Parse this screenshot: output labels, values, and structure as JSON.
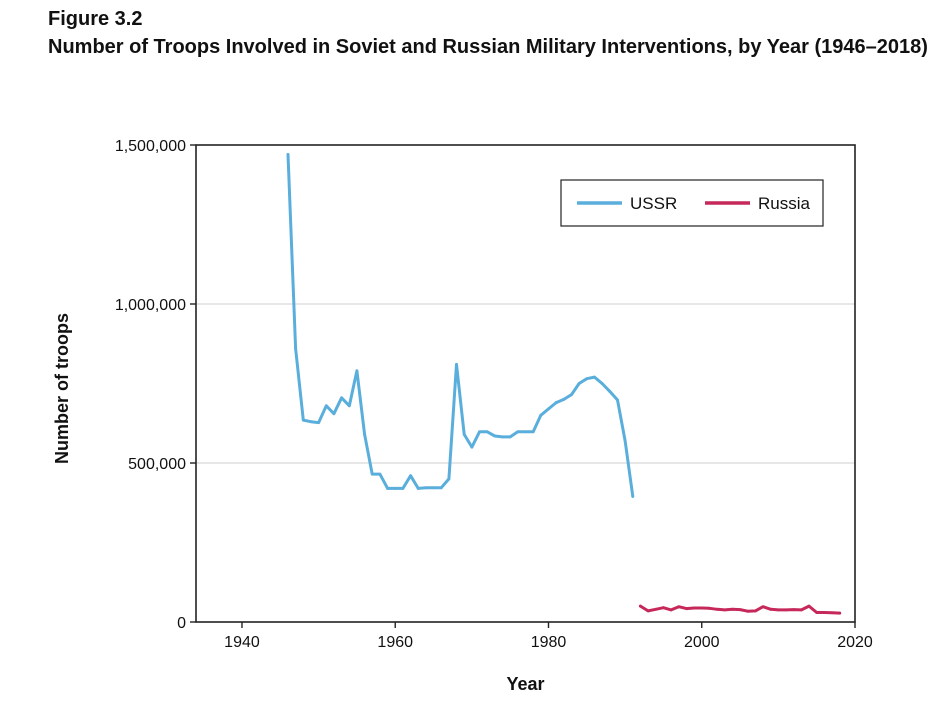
{
  "figure": {
    "label": "Figure 3.2",
    "title": "Number of Troops Involved in Soviet and Russian Military Interventions, by Year (1946–2018)"
  },
  "chart_data": {
    "type": "line",
    "title": "Number of Troops Involved in Soviet and Russian Military Interventions, by Year (1946–2018)",
    "xlabel": "Year",
    "ylabel": "Number of troops",
    "xlim": [
      1934,
      2020
    ],
    "ylim": [
      0,
      1500000
    ],
    "xticks": [
      1940,
      1960,
      1980,
      2000,
      2020
    ],
    "xtick_labels": [
      "1940",
      "1960",
      "1980",
      "2000",
      "2020"
    ],
    "yticks": [
      0,
      500000,
      1000000,
      1500000
    ],
    "ytick_labels": [
      "0",
      "500,000",
      "1,000,000",
      "1,500,000"
    ],
    "grid": "horizontal",
    "legend_position": "top-right",
    "series": [
      {
        "name": "USSR",
        "color": "#5aaedc",
        "x": [
          1946,
          1947,
          1948,
          1949,
          1950,
          1951,
          1952,
          1953,
          1954,
          1955,
          1956,
          1957,
          1958,
          1959,
          1960,
          1961,
          1962,
          1963,
          1964,
          1965,
          1966,
          1967,
          1968,
          1969,
          1970,
          1971,
          1972,
          1973,
          1974,
          1975,
          1976,
          1977,
          1978,
          1979,
          1980,
          1981,
          1982,
          1983,
          1984,
          1985,
          1986,
          1987,
          1988,
          1989,
          1990,
          1991
        ],
        "values": [
          1470000,
          860000,
          635000,
          630000,
          627000,
          680000,
          655000,
          705000,
          680000,
          790000,
          590000,
          465000,
          465000,
          420000,
          420000,
          420000,
          460000,
          420000,
          422000,
          422000,
          422000,
          450000,
          810000,
          590000,
          550000,
          598000,
          598000,
          585000,
          582000,
          582000,
          598000,
          598000,
          598000,
          650000,
          670000,
          690000,
          700000,
          715000,
          750000,
          765000,
          770000,
          750000,
          725000,
          698000,
          570000,
          395000
        ]
      },
      {
        "name": "Russia",
        "color": "#c6285a",
        "x": [
          1992,
          1993,
          1994,
          1995,
          1996,
          1997,
          1998,
          1999,
          2000,
          2001,
          2002,
          2003,
          2004,
          2005,
          2006,
          2007,
          2008,
          2009,
          2010,
          2011,
          2012,
          2013,
          2014,
          2015,
          2016,
          2017,
          2018
        ],
        "values": [
          50000,
          35000,
          40000,
          45000,
          38000,
          48000,
          42000,
          44000,
          44000,
          43000,
          40000,
          38000,
          40000,
          39000,
          34000,
          35000,
          48000,
          40000,
          38000,
          38000,
          39000,
          38000,
          50000,
          30000,
          30000,
          29000,
          28000
        ]
      }
    ]
  }
}
